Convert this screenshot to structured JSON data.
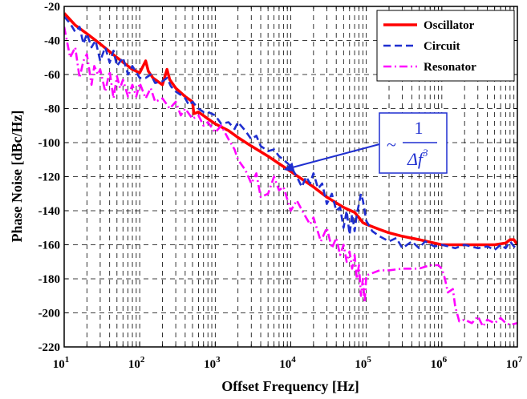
{
  "chart_data": {
    "type": "line",
    "xscale": "log",
    "xlim": [
      10,
      10000000
    ],
    "ylim": [
      -220,
      -20
    ],
    "yticks": [
      -20,
      -40,
      -60,
      -80,
      -100,
      -120,
      -140,
      -160,
      -180,
      -200,
      -220
    ],
    "xtick_exponents": [
      "1",
      "2",
      "3",
      "4",
      "5",
      "6",
      "7"
    ],
    "xtick_base": "10",
    "grid": true,
    "legend_position": "top-right",
    "xlabel": "Offset Frequency [Hz]",
    "ylabel": "Phase Noise [dBc/Hz]",
    "annotation": {
      "prefix": "~",
      "numerator": "1",
      "denominator": "Δf",
      "denominator_exp": "3",
      "arrow_target": [
        8000,
        -116
      ]
    },
    "series": [
      {
        "name": "Oscillator",
        "color": "#ff0000",
        "style": "solid",
        "x": [
          10,
          14,
          20,
          30,
          50,
          80,
          100,
          120,
          130,
          150,
          200,
          230,
          250,
          300,
          400,
          500,
          520,
          600,
          800,
          1000,
          1500,
          2000,
          3000,
          5000,
          10000,
          20000,
          30000,
          50000,
          70000,
          80000,
          90000,
          100000,
          150000,
          200000,
          300000,
          500000,
          1000000,
          2000000,
          3000000,
          5000000,
          7000000,
          8000000,
          9000000,
          10000000
        ],
        "y": [
          -24,
          -31,
          -36,
          -42,
          -50,
          -57,
          -59,
          -52,
          -58,
          -62,
          -66,
          -57,
          -63,
          -68,
          -73,
          -76,
          -83,
          -82,
          -86,
          -89,
          -93,
          -97,
          -102,
          -108,
          -117,
          -126,
          -132,
          -138,
          -141,
          -144,
          -147,
          -148,
          -151,
          -153,
          -155,
          -157,
          -160,
          -160,
          -160,
          -160,
          -159,
          -157,
          -157,
          -160
        ]
      },
      {
        "name": "Circuit",
        "color": "#1f2fd0",
        "style": "dashed",
        "x": [
          10,
          12,
          14,
          16,
          18,
          20,
          23,
          26,
          30,
          35,
          40,
          45,
          50,
          60,
          70,
          80,
          100,
          120,
          140,
          160,
          200,
          230,
          260,
          300,
          350,
          400,
          450,
          500,
          600,
          700,
          800,
          1000,
          1200,
          1500,
          1800,
          2000,
          2500,
          3000,
          3500,
          4000,
          5000,
          6000,
          7000,
          8000,
          9000,
          10000,
          12000,
          14000,
          16000,
          18000,
          20000,
          23000,
          26000,
          30000,
          35000,
          40000,
          45000,
          50000,
          55000,
          60000,
          65000,
          70000,
          75000,
          80000,
          85000,
          90000,
          95000,
          100000,
          120000,
          150000,
          200000,
          250000,
          300000,
          400000,
          500000,
          600000,
          800000,
          1000000,
          1500000,
          2000000,
          3000000,
          4000000,
          5000000,
          6000000,
          7000000,
          8000000,
          9000000,
          10000000
        ],
        "y": [
          -26,
          -30,
          -35,
          -32,
          -42,
          -36,
          -44,
          -40,
          -52,
          -44,
          -53,
          -46,
          -55,
          -50,
          -60,
          -55,
          -62,
          -62,
          -60,
          -65,
          -64,
          -62,
          -67,
          -70,
          -72,
          -74,
          -78,
          -76,
          -80,
          -82,
          -82,
          -84,
          -89,
          -88,
          -92,
          -88,
          -93,
          -98,
          -96,
          -102,
          -105,
          -104,
          -108,
          -110,
          -112,
          -114,
          -120,
          -126,
          -120,
          -124,
          -118,
          -127,
          -124,
          -136,
          -130,
          -140,
          -138,
          -150,
          -140,
          -154,
          -142,
          -152,
          -142,
          -136,
          -130,
          -134,
          -140,
          -146,
          -152,
          -155,
          -158,
          -156,
          -162,
          -158,
          -162,
          -158,
          -161,
          -160,
          -162,
          -160,
          -162,
          -161,
          -163,
          -160,
          -162,
          -158,
          -161,
          -162
        ]
      },
      {
        "name": "Resonator",
        "color": "#ff00ff",
        "style": "dash-dot",
        "x": [
          10,
          12,
          14,
          16,
          18,
          20,
          23,
          25,
          28,
          30,
          35,
          40,
          45,
          50,
          55,
          60,
          70,
          80,
          90,
          100,
          120,
          140,
          160,
          200,
          250,
          300,
          350,
          400,
          500,
          600,
          700,
          800,
          1000,
          1200,
          1500,
          1800,
          2000,
          2500,
          3000,
          3500,
          4000,
          5000,
          6000,
          7000,
          8000,
          10000,
          12000,
          15000,
          18000,
          20000,
          25000,
          30000,
          35000,
          40000,
          45000,
          50000,
          55000,
          60000,
          65000,
          70000,
          75000,
          80000,
          85000,
          90000,
          95000,
          100000,
          150000,
          200000,
          300000,
          500000,
          700000,
          900000,
          1000000,
          1100000,
          1200000,
          1400000,
          1500000,
          1700000,
          2000000,
          2500000,
          3000000,
          3500000,
          4000000,
          5000000,
          6000000,
          7000000,
          8000000,
          10000000
        ],
        "y": [
          -32,
          -50,
          -44,
          -62,
          -52,
          -48,
          -66,
          -55,
          -60,
          -57,
          -70,
          -58,
          -74,
          -61,
          -68,
          -63,
          -73,
          -66,
          -73,
          -65,
          -74,
          -68,
          -76,
          -74,
          -80,
          -76,
          -84,
          -80,
          -86,
          -84,
          -90,
          -88,
          -94,
          -90,
          -98,
          -104,
          -110,
          -116,
          -124,
          -118,
          -132,
          -130,
          -120,
          -128,
          -126,
          -140,
          -134,
          -142,
          -148,
          -144,
          -158,
          -150,
          -162,
          -156,
          -166,
          -160,
          -170,
          -164,
          -174,
          -166,
          -180,
          -172,
          -190,
          -180,
          -194,
          -178,
          -175,
          -175,
          -174,
          -174,
          -172,
          -172,
          -174,
          -180,
          -188,
          -186,
          -196,
          -205,
          -204,
          -206,
          -202,
          -208,
          -204,
          -206,
          -203,
          -206,
          -207,
          -206
        ]
      }
    ]
  }
}
